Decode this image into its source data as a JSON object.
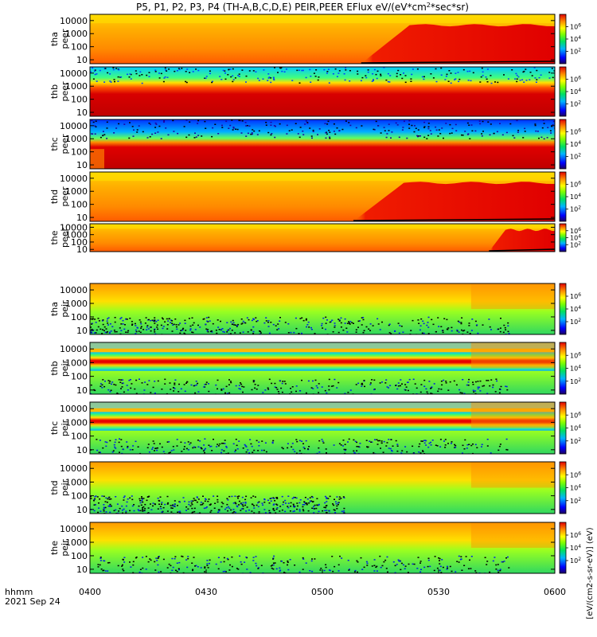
{
  "chart_data": {
    "type": "heatmap",
    "title": "P5, P1, P2, P3, P4 (TH-A,B,C,D,E) PEIR,PEER EFlux eV/(eV*cm",
    "title_sup": "2",
    "title_tail": "*sec*sr)",
    "x_axis": {
      "label_line1": "hhmm",
      "label_line2": "2021 Sep 24",
      "ticks": [
        "0400",
        "0430",
        "0500",
        "0530",
        "0600"
      ],
      "range": [
        "0400",
        "0600"
      ]
    },
    "y_scale": "log",
    "y_range": [
      5,
      30000
    ],
    "y_ticks": [
      "10",
      "100",
      "1000",
      "10000"
    ],
    "colorbar_ticks": [
      "10^2",
      "10^4",
      "10^6"
    ],
    "colorbar_unit_text": "[eV/(cm2-s-sr-eV)] (eV)",
    "panels": [
      {
        "line1": "tha",
        "line2": "peer",
        "species": "electron",
        "probe": "a",
        "hot_onset": "0510"
      },
      {
        "line1": "thb",
        "line2": "peer",
        "species": "electron",
        "probe": "b",
        "hot_band_ev": [
          20,
          500
        ]
      },
      {
        "line1": "thc",
        "line2": "peer",
        "species": "electron",
        "probe": "c",
        "hot_band_ev": [
          10,
          500
        ]
      },
      {
        "line1": "thd",
        "line2": "peer",
        "species": "electron",
        "probe": "d",
        "hot_onset": "0508"
      },
      {
        "line1": "the",
        "line2": "peer",
        "species": "electron",
        "probe": "e",
        "hot_onset": "0543"
      },
      {
        "line1": "tha",
        "line2": "peir",
        "species": "ion",
        "probe": "a"
      },
      {
        "line1": "thb",
        "line2": "peir",
        "species": "ion",
        "probe": "b",
        "band_center_ev": 1200
      },
      {
        "line1": "thc",
        "line2": "peir",
        "species": "ion",
        "probe": "c",
        "band_center_ev": 1200
      },
      {
        "line1": "thd",
        "line2": "peir",
        "species": "ion",
        "probe": "d"
      },
      {
        "line1": "the",
        "line2": "peir",
        "species": "ion",
        "probe": "e"
      }
    ]
  }
}
